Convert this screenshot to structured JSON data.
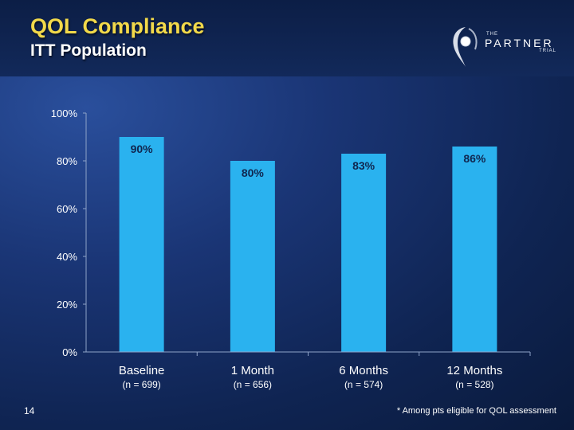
{
  "header": {
    "title": "QOL Compliance",
    "subtitle": "ITT Population"
  },
  "logo": {
    "the": "THE",
    "main": "PARTNER",
    "trial": "TRIAL"
  },
  "chart_data": {
    "type": "bar",
    "categories": [
      "Baseline",
      "1 Month",
      "6 Months",
      "12 Months"
    ],
    "sample_sizes": [
      "(n = 699)",
      "(n = 656)",
      "(n = 574)",
      "(n = 528)"
    ],
    "values": [
      90,
      80,
      83,
      86
    ],
    "data_labels": [
      "90%",
      "80%",
      "83%",
      "86%"
    ],
    "yticks": [
      "0%",
      "20%",
      "40%",
      "60%",
      "80%",
      "100%"
    ],
    "ylim": [
      0,
      100
    ],
    "bar_color": "#2ab2ef",
    "grid": false
  },
  "footer": {
    "slide_number": "14",
    "footnote": "* Among pts eligible for QOL assessment"
  }
}
